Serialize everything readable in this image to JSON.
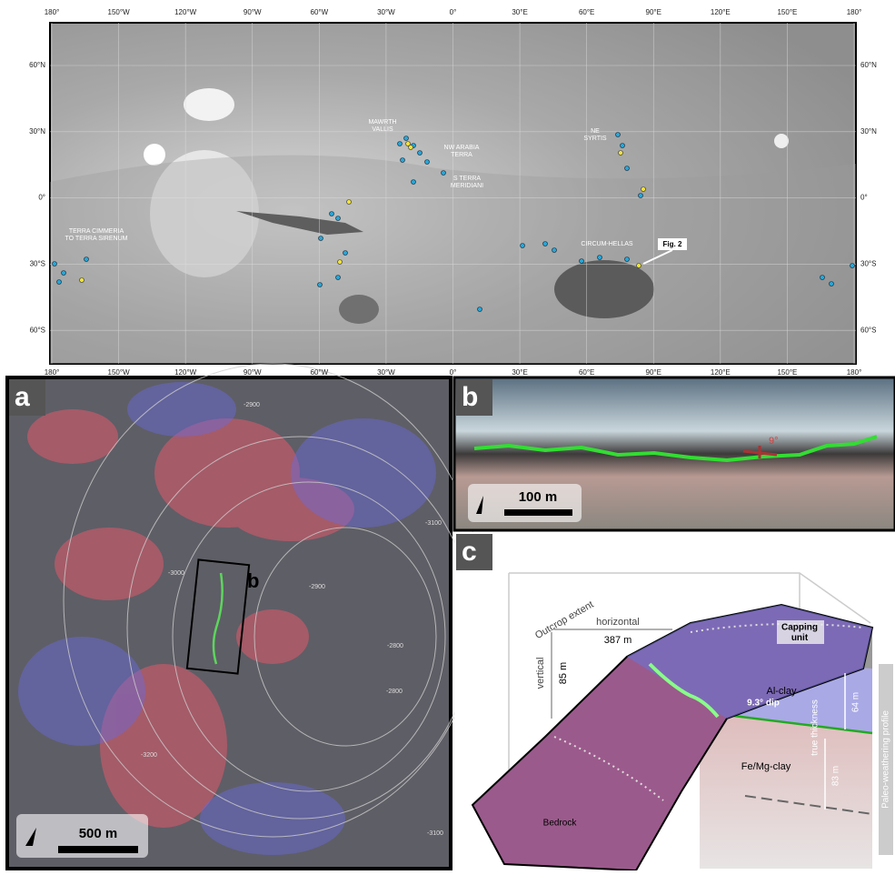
{
  "map": {
    "lon_labels": [
      "180°",
      "150°W",
      "120°W",
      "90°W",
      "60°W",
      "30°W",
      "0°",
      "30°E",
      "60°E",
      "90°E",
      "120°E",
      "150°E",
      "180°"
    ],
    "lat_labels": [
      "60°N",
      "30°N",
      "0°",
      "30°S",
      "60°S"
    ],
    "regions": [
      "MAWRTH\nVALLIS",
      "NW ARABIA\nTERRA",
      "S TERRA\nMERIDIANI",
      "NE\nSYRTIS",
      "TERRA CIMMERIA\nTO TERRA SIRENUM",
      "CIRCUM-HELLAS"
    ],
    "callout": "Fig. 2"
  },
  "panel_a": {
    "label": "a",
    "inset_label": "b",
    "contours": [
      "-3100",
      "-3000",
      "-2900",
      "-2800",
      "-2800",
      "-2900",
      "-3200",
      "-3100"
    ],
    "scale": "500 m"
  },
  "panel_b": {
    "label": "b",
    "dip": "9°",
    "scale": "100 m"
  },
  "panel_c": {
    "label": "c",
    "outcrop": "Outcrop extent",
    "horizontal": "horizontal",
    "horizontal_value": "387 m",
    "vertical": "vertical",
    "vertical_value": "85 m",
    "capping": "Capping\nunit",
    "al_clay": "Al-clay",
    "dip": "9.3° dip",
    "al_thickness": "64 m",
    "true_thickness": "true thickness",
    "fe_thickness": "83 m",
    "fe_clay": "Fe/Mg-clay",
    "bedrock": "Bedrock",
    "profile": "Paleo-weathering profile"
  }
}
